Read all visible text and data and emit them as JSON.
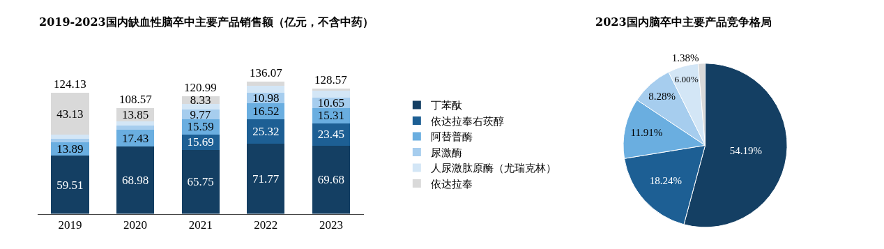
{
  "chart_data": [
    {
      "type": "bar",
      "title": "2019-2023国内缺血性脑卒中主要产品销售额（亿元，不含中药）",
      "stacked": true,
      "categories": [
        "2019",
        "2020",
        "2021",
        "2022",
        "2023"
      ],
      "series": [
        {
          "name": "丁苯酞",
          "color": "#143f63",
          "values": [
            59.51,
            68.98,
            65.75,
            71.77,
            69.68
          ],
          "value_labels": [
            "59.51",
            "68.98",
            "65.75",
            "71.77",
            "69.68"
          ]
        },
        {
          "name": "依达拉奉右莰醇",
          "color": "#1d5f94",
          "values": [
            0,
            0,
            15.69,
            25.32,
            23.45
          ],
          "value_labels": [
            null,
            null,
            "15.69",
            "25.32",
            "23.45"
          ]
        },
        {
          "name": "阿替普酶",
          "color": "#6aaee0",
          "values": [
            13.89,
            17.43,
            15.59,
            16.52,
            15.31
          ],
          "value_labels": [
            "13.89",
            "17.43",
            "15.59",
            "16.52",
            "15.31"
          ]
        },
        {
          "name": "尿激酶",
          "color": "#a6cdee",
          "values": [
            3.8,
            4.6,
            9.77,
            10.98,
            10.65
          ],
          "value_labels": [
            null,
            null,
            "9.77",
            "10.98",
            "10.65"
          ]
        },
        {
          "name": "人尿激肽原酶（尤瑞克林）",
          "color": "#d3e6f6",
          "values": [
            3.8,
            3.71,
            5.86,
            6.8,
            7.71
          ],
          "value_labels": [
            null,
            null,
            null,
            null,
            null
          ]
        },
        {
          "name": "依达拉奉",
          "color": "#d9d9d9",
          "values": [
            43.13,
            13.85,
            8.33,
            4.68,
            1.77
          ],
          "value_labels": [
            "43.13",
            "13.85",
            "8.33",
            null,
            null
          ]
        }
      ],
      "totals": [
        "124.13",
        "108.57",
        "120.99",
        "136.07",
        "128.57"
      ],
      "legend": "right"
    },
    {
      "type": "pie",
      "title": "2023国内脑卒中主要产品竞争格局",
      "categories": [
        null,
        null,
        null,
        null,
        null,
        null
      ],
      "values": [
        54.19,
        18.24,
        11.91,
        8.28,
        6.0,
        1.38
      ],
      "colors": [
        "#143f63",
        "#1d5f94",
        "#6aaee0",
        "#a6cdee",
        "#d3e6f6",
        "#d9d9d9"
      ],
      "value_labels": [
        "54.19%",
        "18.24%",
        "11.91%",
        "8.28%",
        "6.00%",
        "1.38%"
      ]
    }
  ]
}
